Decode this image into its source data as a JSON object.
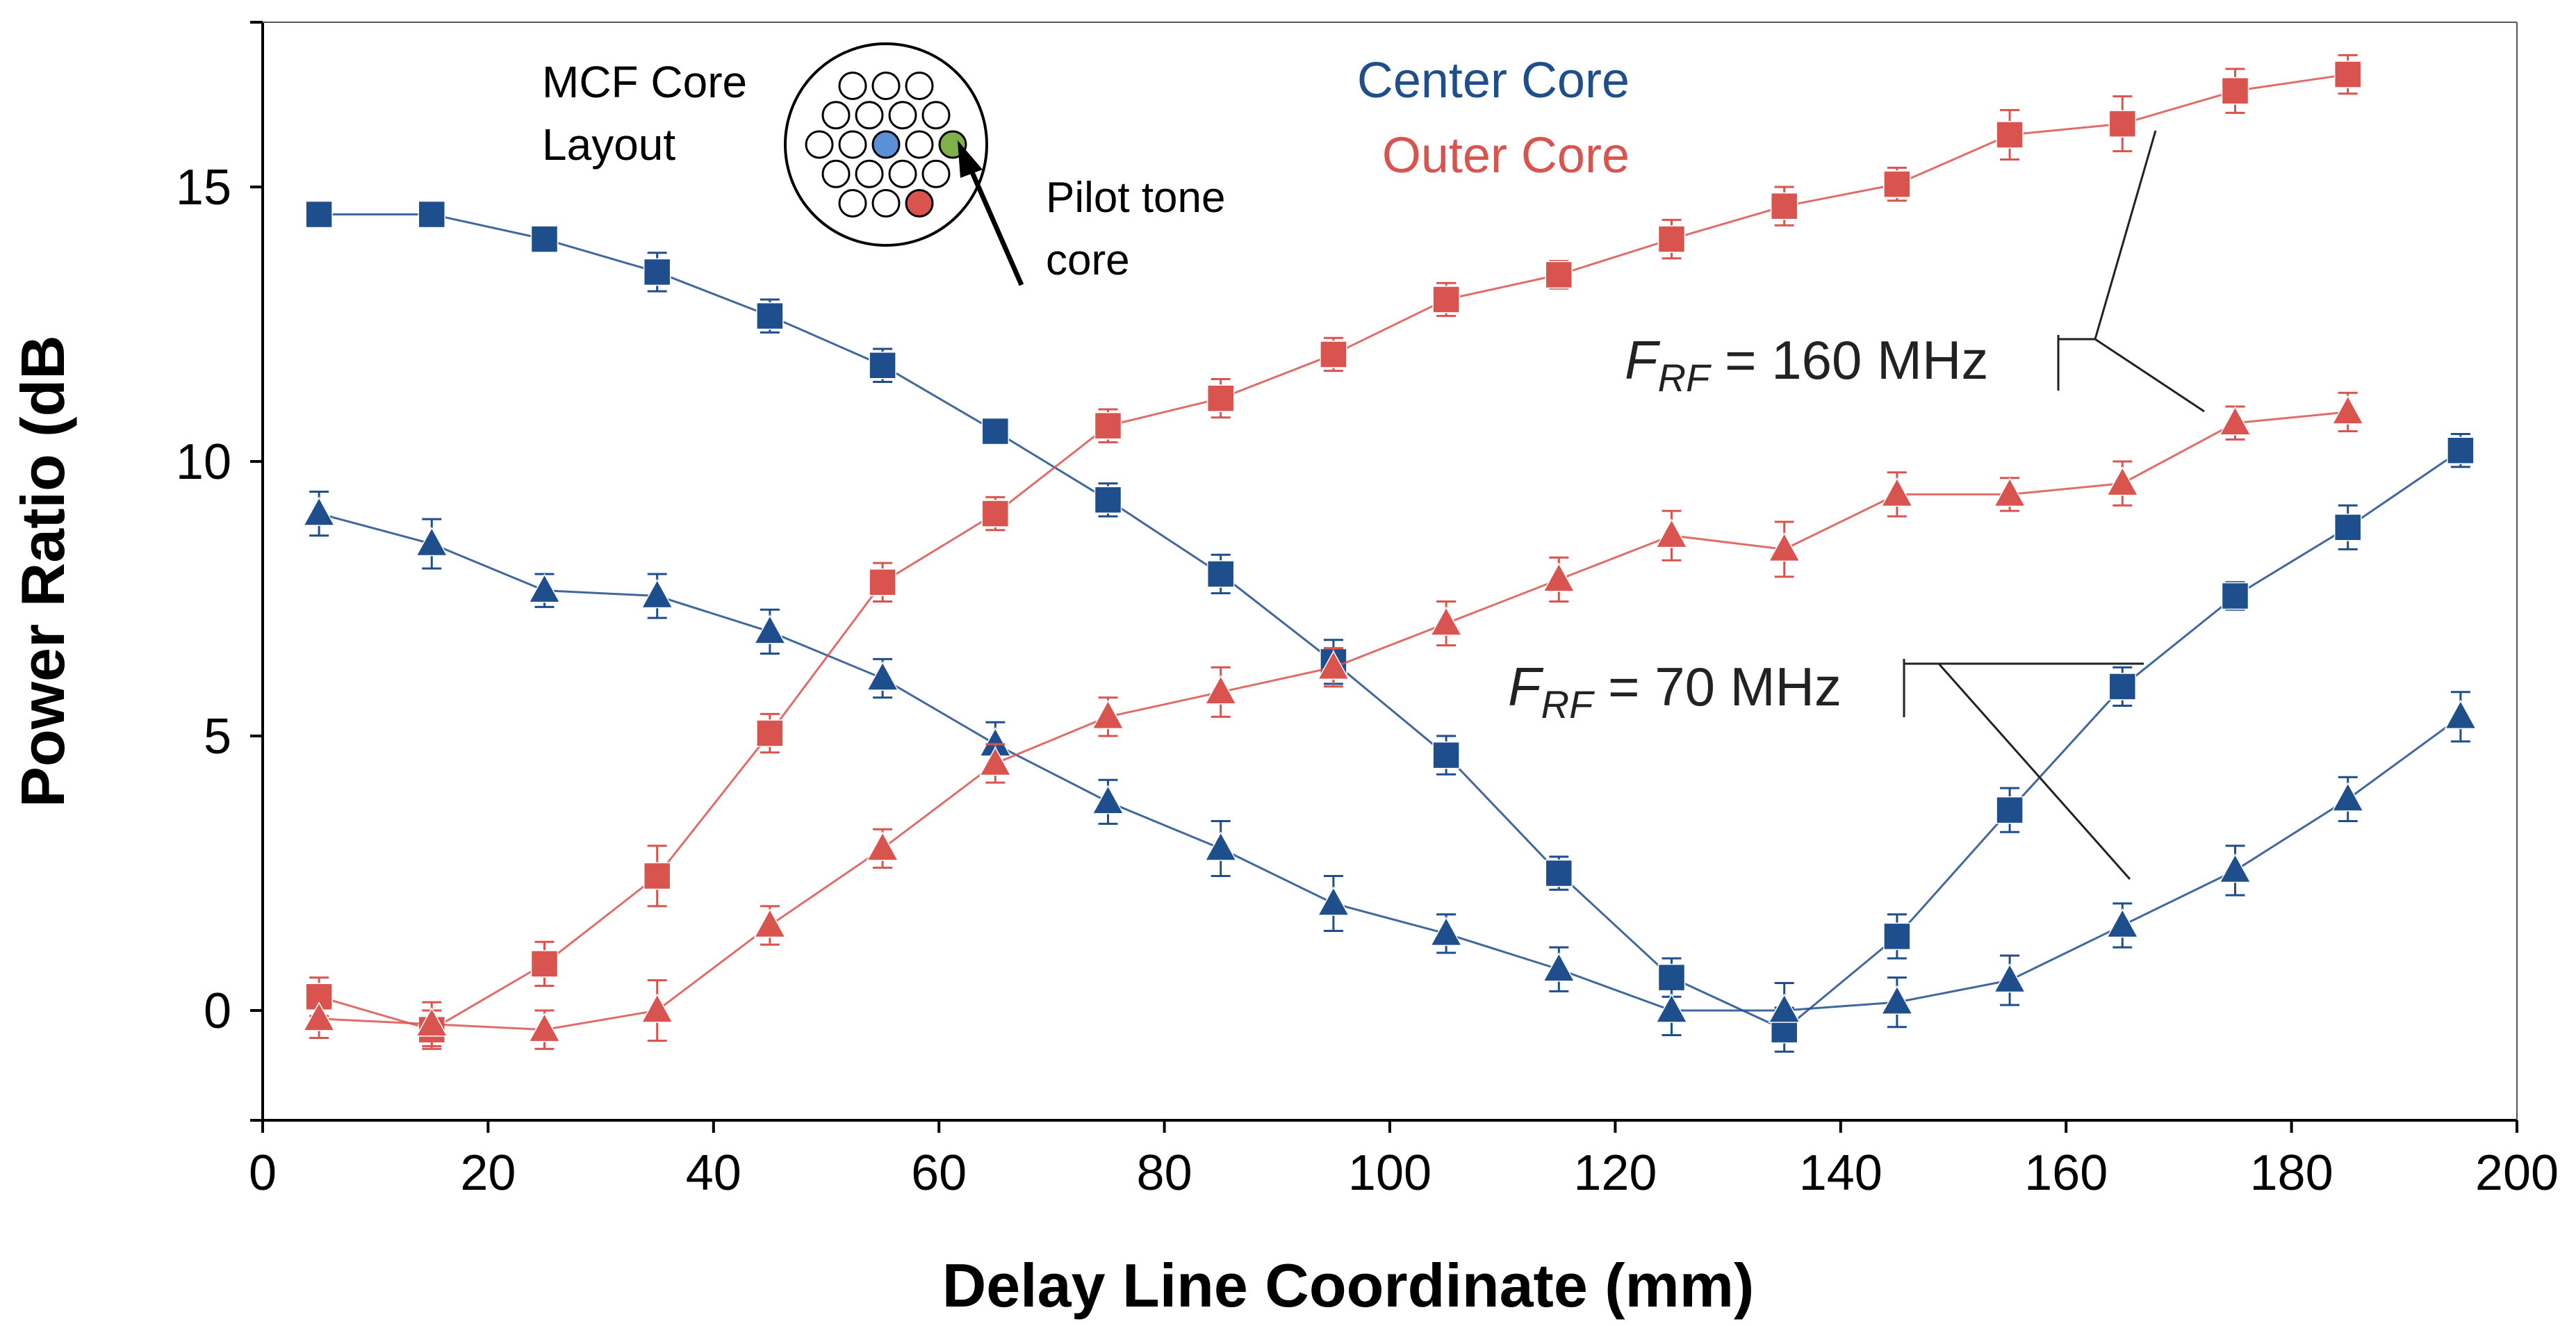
{
  "chart_data": {
    "type": "line",
    "title": "",
    "xlabel": "Delay Line Coordinate (mm)",
    "ylabel": "Power Ratio (dB",
    "xlim": [
      0,
      200
    ],
    "ylim": [
      -2,
      18
    ],
    "x_ticks": [
      0,
      20,
      40,
      60,
      80,
      100,
      120,
      140,
      160,
      180,
      200
    ],
    "y_ticks": [
      0,
      5,
      10,
      15
    ],
    "grid": false,
    "colors": {
      "center": "#1f4e8c",
      "outer": "#d9534f",
      "axis": "#000000",
      "annotation": "#222222"
    },
    "legend": {
      "center_label": "Center Core",
      "outer_label": "Outer Core",
      "placement": "top-center"
    },
    "inset": {
      "title_line1": "MCF Core",
      "title_line2": "Layout",
      "pilot_line1": "Pilot tone",
      "pilot_line2": "core"
    },
    "annotations": [
      {
        "symbol": "F",
        "subscript": "RF",
        "text": " = 160 MHz",
        "points_to": "squares-and-triangles"
      },
      {
        "symbol": "F",
        "subscript": "RF",
        "text": " = 70 MHz",
        "points_to": "squares-and-triangles"
      }
    ],
    "series": [
      {
        "name": "Center Core, F_RF = 160 MHz",
        "core": "center",
        "marker": "square",
        "x": [
          5,
          15,
          25,
          35,
          45,
          55,
          65,
          75,
          85,
          95,
          105,
          115,
          125,
          135,
          145,
          155,
          165,
          175,
          185,
          195
        ],
        "y": [
          14.5,
          14.5,
          14.05,
          13.45,
          12.65,
          11.75,
          10.55,
          9.3,
          7.95,
          6.35,
          4.65,
          2.5,
          0.6,
          -0.35,
          1.35,
          3.65,
          5.9,
          7.55,
          8.8,
          10.2
        ],
        "err": [
          0.2,
          0.2,
          0.2,
          0.35,
          0.3,
          0.3,
          0.2,
          0.3,
          0.35,
          0.4,
          0.35,
          0.3,
          0.35,
          0.4,
          0.4,
          0.4,
          0.35,
          0.25,
          0.4,
          0.3
        ]
      },
      {
        "name": "Center Core, F_RF = 70 MHz",
        "core": "center",
        "marker": "triangle",
        "x": [
          5,
          15,
          25,
          35,
          45,
          55,
          65,
          75,
          85,
          95,
          105,
          115,
          125,
          135,
          145,
          155,
          165,
          175,
          185,
          195
        ],
        "y": [
          9.05,
          8.5,
          7.65,
          7.55,
          6.9,
          6.05,
          4.85,
          3.8,
          2.95,
          1.95,
          1.4,
          0.75,
          0.0,
          0.0,
          0.15,
          0.55,
          1.55,
          2.55,
          3.85,
          5.35
        ],
        "err": [
          0.4,
          0.45,
          0.3,
          0.4,
          0.4,
          0.35,
          0.4,
          0.4,
          0.5,
          0.5,
          0.35,
          0.4,
          0.45,
          0.5,
          0.45,
          0.45,
          0.4,
          0.45,
          0.4,
          0.45
        ]
      },
      {
        "name": "Outer Core, F_RF = 160 MHz",
        "core": "outer",
        "marker": "square",
        "x": [
          5,
          15,
          25,
          35,
          45,
          55,
          65,
          75,
          85,
          95,
          105,
          115,
          125,
          135,
          145,
          155,
          165,
          175,
          185
        ],
        "y": [
          0.25,
          -0.35,
          0.85,
          2.45,
          5.05,
          7.8,
          9.05,
          10.65,
          11.15,
          11.95,
          12.95,
          13.4,
          14.05,
          14.65,
          15.05,
          15.95,
          16.15,
          16.75,
          17.05
        ],
        "err": [
          0.35,
          0.35,
          0.4,
          0.55,
          0.35,
          0.35,
          0.3,
          0.3,
          0.35,
          0.3,
          0.3,
          0.25,
          0.35,
          0.35,
          0.3,
          0.45,
          0.5,
          0.4,
          0.35
        ]
      },
      {
        "name": "Outer Core, F_RF = 70 MHz",
        "core": "outer",
        "marker": "triangle",
        "x": [
          5,
          15,
          25,
          35,
          45,
          55,
          65,
          75,
          85,
          95,
          105,
          115,
          125,
          135,
          145,
          155,
          165,
          175,
          185
        ],
        "y": [
          -0.15,
          -0.25,
          -0.35,
          0.0,
          1.55,
          2.95,
          4.5,
          5.35,
          5.8,
          6.25,
          7.05,
          7.85,
          8.65,
          8.4,
          9.4,
          9.4,
          9.6,
          10.7,
          10.9
        ],
        "err": [
          0.35,
          0.4,
          0.35,
          0.55,
          0.35,
          0.35,
          0.35,
          0.35,
          0.45,
          0.35,
          0.4,
          0.4,
          0.45,
          0.5,
          0.4,
          0.3,
          0.4,
          0.3,
          0.35
        ]
      }
    ]
  }
}
